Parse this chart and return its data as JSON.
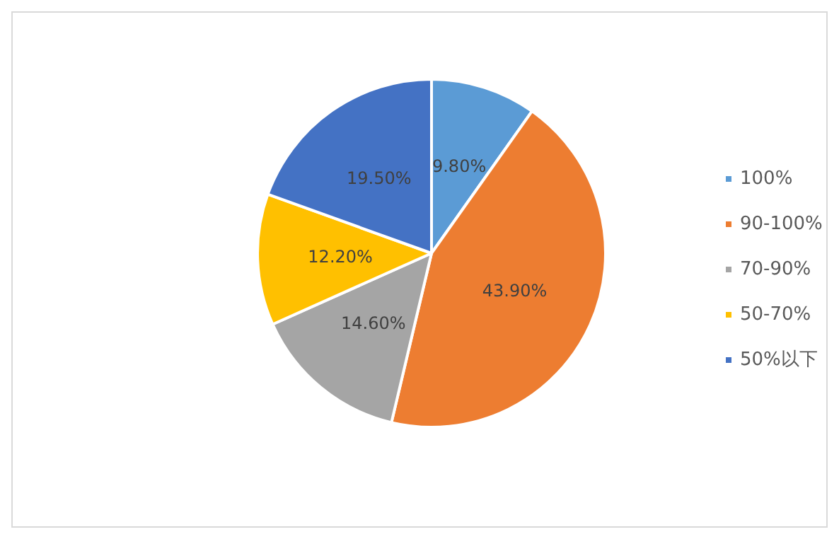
{
  "chart_data": {
    "type": "pie",
    "categories": [
      "100%",
      "90-100%",
      "70-90%",
      "50-70%",
      "50%以下"
    ],
    "values": [
      9.8,
      43.9,
      14.6,
      12.2,
      19.5
    ],
    "colors": [
      "#5b9bd5",
      "#ed7d31",
      "#a5a5a5",
      "#ffc000",
      "#4472c4"
    ],
    "value_labels": [
      "9.80%",
      "43.90%",
      "14.60%",
      "12.20%",
      "19.50%"
    ],
    "legend": "right"
  }
}
